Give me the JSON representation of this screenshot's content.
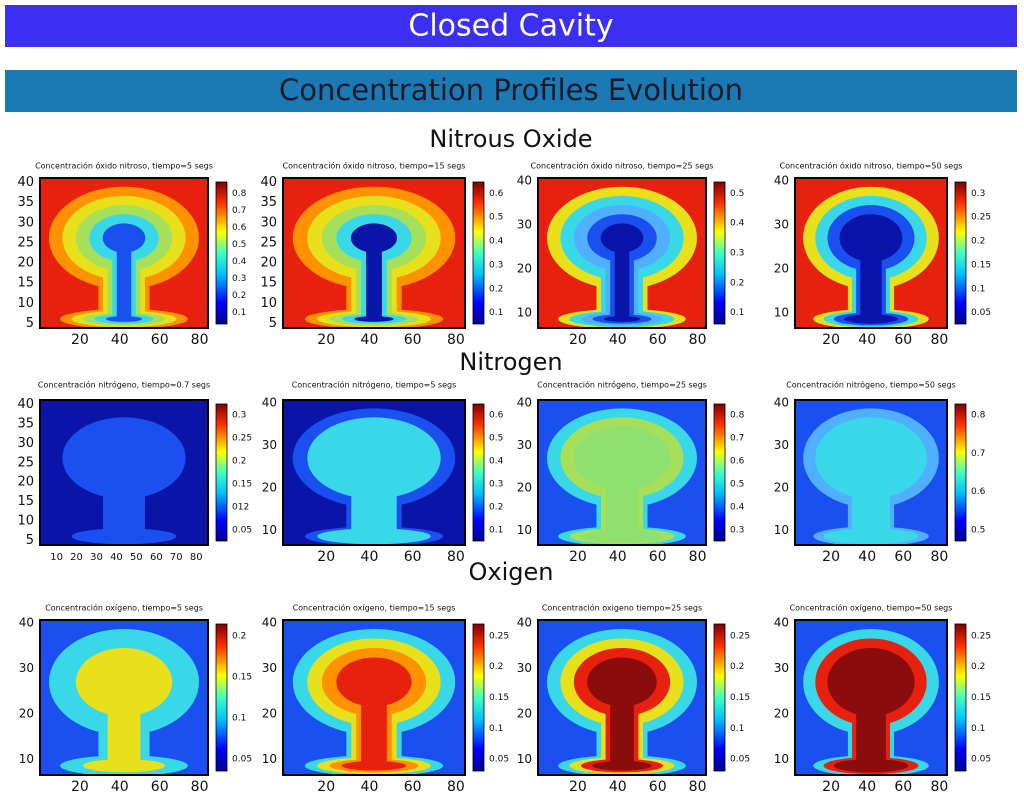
{
  "header": {
    "title": "Closed Cavity",
    "subtitle": "Concentration Profiles Evolution"
  },
  "sections": [
    {
      "title": "Nitrous Oxide",
      "panels": [
        {
          "title": "Concentración óxido nitroso, tiempo=5 segs",
          "yticks": [
            "5",
            "10",
            "15",
            "20",
            "25",
            "30",
            "35",
            "40"
          ],
          "xticks": [
            "20",
            "40",
            "60",
            "80"
          ],
          "colorbar": [
            "0.1",
            "0.2",
            "0.3",
            "0.4",
            "0.5",
            "0.6",
            "0.7",
            "0.8"
          ]
        },
        {
          "title": "Concentración óxido nitroso, tiempo=15 segs",
          "yticks": [
            "5",
            "10",
            "15",
            "20",
            "25",
            "30",
            "35",
            "40"
          ],
          "xticks": [
            "20",
            "40",
            "60",
            "80"
          ],
          "colorbar": [
            "0.1",
            "0.2",
            "0.3",
            "0.4",
            "0.5",
            "0.6"
          ]
        },
        {
          "title": "Concentración óxido nitroso, tiempo=25 segs",
          "yticks": [
            "10",
            "20",
            "30",
            "40"
          ],
          "xticks": [
            "20",
            "40",
            "60",
            "80"
          ],
          "colorbar": [
            "0.1",
            "0.2",
            "0.3",
            "0.4",
            "0.5"
          ]
        },
        {
          "title": "Concentración óxido nitroso, tiempo=50 segs",
          "yticks": [
            "10",
            "20",
            "30",
            "40"
          ],
          "xticks": [
            "20",
            "40",
            "60",
            "80"
          ],
          "colorbar": [
            "0.05",
            "0.1",
            "0.15",
            "0.2",
            "0.25",
            "0.3"
          ]
        }
      ]
    },
    {
      "title": "Nitrogen",
      "panels": [
        {
          "title": "Concentración nitrógeno, tiempo=0.7 segs",
          "yticks": [
            "5",
            "10",
            "15",
            "20",
            "25",
            "30",
            "35",
            "40"
          ],
          "xticks": [
            "10",
            "20",
            "30",
            "40",
            "50",
            "60",
            "70",
            "80"
          ],
          "colorbar": [
            "0.05",
            "012",
            "0.15",
            "0.2",
            "0.25",
            "0.3"
          ]
        },
        {
          "title": "Concentración nitrógeno, tiempo=5 segs",
          "yticks": [
            "10",
            "20",
            "30",
            "40"
          ],
          "xticks": [
            "20",
            "40",
            "60",
            "80"
          ],
          "colorbar": [
            "0.1",
            "0.2",
            "0.3",
            "0.4",
            "0.5",
            "0.6"
          ]
        },
        {
          "title": "Concentración nitrógeno, tiempo=25 segs",
          "yticks": [
            "10",
            "20",
            "30",
            "40"
          ],
          "xticks": [
            "20",
            "40",
            "60",
            "80"
          ],
          "colorbar": [
            "0.3",
            "0.4",
            "0.5",
            "0.6",
            "0.7",
            "0.8"
          ]
        },
        {
          "title": "Concentración nitrógeno, tiempo=50 segs",
          "yticks": [
            "10",
            "20",
            "30",
            "40"
          ],
          "xticks": [
            "20",
            "40",
            "60",
            "80"
          ],
          "colorbar": [
            "0.5",
            "0.6",
            "0.7",
            "0.8"
          ]
        }
      ]
    },
    {
      "title": "Oxigen",
      "panels": [
        {
          "title": "Concentración oxígeno, tiempo=5 segs",
          "yticks": [
            "10",
            "20",
            "30",
            "40"
          ],
          "xticks": [
            "20",
            "40",
            "60",
            "80"
          ],
          "colorbar": [
            "0.05",
            "0.1",
            "0.15",
            "0.2"
          ]
        },
        {
          "title": "Concentración oxígeno, tiempo=15 segs",
          "yticks": [
            "10",
            "20",
            "30",
            "40"
          ],
          "xticks": [
            "20",
            "40",
            "60",
            "80"
          ],
          "colorbar": [
            "0.05",
            "0.1",
            "0.15",
            "0.2",
            "0.25"
          ]
        },
        {
          "title": "Concentración oxigeno tiempo=25 segs",
          "yticks": [
            "10",
            "20",
            "30",
            "40"
          ],
          "xticks": [
            "20",
            "40",
            "60",
            "80"
          ],
          "colorbar": [
            "0.05",
            "0.1",
            "0.15",
            "0.2",
            "0.25"
          ]
        },
        {
          "title": "Concentración oxígeno, tiempo=50 segs",
          "yticks": [
            "10",
            "20",
            "30",
            "40"
          ],
          "xticks": [
            "20",
            "40",
            "60",
            "80"
          ],
          "colorbar": [
            "0.05",
            "0.1",
            "0.15",
            "0.2",
            "0.25"
          ]
        }
      ]
    }
  ]
}
